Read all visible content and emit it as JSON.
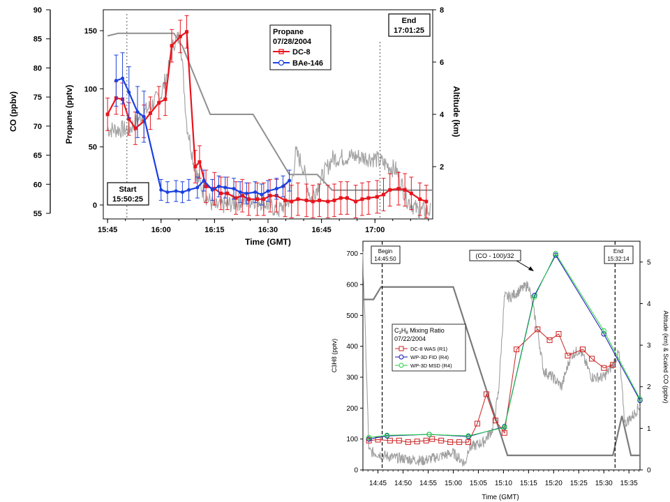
{
  "chart_data": [
    {
      "type": "line",
      "title": "Propane",
      "subtitle": "07/28/2004",
      "xlabel": "Time (GMT)",
      "ylabel": "Propane (pptv)",
      "y2label": "Altitude (km)",
      "y3label": "CO (ppbv)",
      "x_ticks": [
        "15:45",
        "16:00",
        "16:15",
        "16:30",
        "16:45",
        "17:00"
      ],
      "y_ticks": [
        "0",
        "50",
        "100",
        "150"
      ],
      "y2_ticks": [
        "2",
        "4",
        "6",
        "8"
      ],
      "y3_ticks": [
        "55",
        "60",
        "65",
        "70",
        "75",
        "80",
        "85",
        "90"
      ],
      "xlim": [
        15.73,
        17.27
      ],
      "ylim": [
        -12,
        168
      ],
      "y2lim": [
        0,
        8
      ],
      "y3lim": [
        55,
        90
      ],
      "annotations": {
        "start_title": "Start",
        "start_time": "15:50:25",
        "end_title": "End",
        "end_time": "17:01:25"
      },
      "series": [
        {
          "name": "DC-8",
          "color": "#e8141c",
          "x": [
            15.75,
            15.79,
            15.82,
            15.85,
            15.88,
            15.92,
            15.95,
            15.99,
            16.02,
            16.05,
            16.09,
            16.12,
            16.16,
            16.18,
            16.21,
            16.25,
            16.28,
            16.31,
            16.35,
            16.38,
            16.41,
            16.45,
            16.48,
            16.51,
            16.54,
            16.58,
            16.61,
            16.64,
            16.68,
            16.71,
            16.74,
            16.78,
            16.81,
            16.84,
            16.87,
            16.91,
            16.94,
            16.97,
            17.01,
            17.04,
            17.07,
            17.11,
            17.14,
            17.17,
            17.21,
            17.24
          ],
          "y": [
            78,
            92,
            91,
            74,
            66,
            72,
            79,
            88,
            91,
            137,
            145,
            149,
            33,
            37,
            16,
            14,
            10,
            10,
            6,
            8,
            5,
            5,
            5,
            8,
            8,
            4,
            3,
            5,
            4,
            3,
            4,
            3,
            4,
            6,
            6,
            3,
            5,
            6,
            7,
            9,
            13,
            14,
            13,
            10,
            5,
            3
          ]
        },
        {
          "name": "BAe-146",
          "color": "#1a40e0",
          "x": [
            15.79,
            15.82,
            15.85,
            15.89,
            15.92,
            16.0,
            16.03,
            16.07,
            16.1,
            16.13,
            16.17,
            16.2,
            16.24,
            16.27,
            16.3,
            16.34,
            16.37,
            16.4,
            16.44,
            16.47,
            16.5,
            16.54,
            16.57,
            16.6
          ],
          "y": [
            107,
            109,
            97,
            80,
            76,
            13,
            11,
            12,
            11,
            13,
            15,
            21,
            13,
            16,
            15,
            14,
            11,
            10,
            11,
            9,
            12,
            14,
            16,
            21
          ]
        }
      ]
    },
    {
      "type": "line",
      "title": "C3H8 Mixing Ratio",
      "subtitle": "07/22/2004",
      "xlabel": "Time (GMT)",
      "ylabel": "C3H8 (pptv)",
      "y2label": "Altitude (km) & Scaled CO (ppbv)",
      "x_ticks": [
        "14:45",
        "14:50",
        "14:55",
        "15:00",
        "15:05",
        "15:10",
        "15:15",
        "15:20",
        "15:25",
        "15:30",
        "15:35"
      ],
      "y_ticks": [
        "0",
        "100",
        "200",
        "300",
        "400",
        "500",
        "600",
        "700"
      ],
      "y2_ticks": [
        "0",
        "1",
        "2",
        "3",
        "4",
        "5"
      ],
      "xlim": [
        14.7,
        15.62
      ],
      "ylim": [
        0,
        740
      ],
      "y2lim": [
        0,
        5.5
      ],
      "annotations": {
        "begin_title": "Begin",
        "begin_time": "14:45:50",
        "end_title": "End",
        "end_time": "15:32:14",
        "co_label": "(CO - 100)/32"
      },
      "series": [
        {
          "name": "DC-8 WAS (R1)",
          "color": "#cc2020",
          "x": [
            14.72,
            14.75,
            14.79,
            14.82,
            14.85,
            14.88,
            14.91,
            14.93,
            14.96,
            14.99,
            15.02,
            15.05,
            15.08,
            15.11,
            15.14,
            15.17,
            15.21,
            15.28,
            15.32,
            15.35,
            15.38,
            15.43,
            15.46,
            15.5,
            15.53
          ],
          "y": [
            95,
            98,
            95,
            95,
            90,
            92,
            95,
            100,
            95,
            90,
            90,
            90,
            150,
            245,
            160,
            120,
            390,
            455,
            420,
            440,
            370,
            390,
            360,
            330,
            340
          ]
        },
        {
          "name": "WP-3D FID (R4)",
          "color": "#1010b0",
          "x": [
            14.72,
            14.78,
            14.92,
            15.05,
            15.17,
            15.27,
            15.34,
            15.5,
            15.62
          ],
          "y": [
            100,
            110,
            115,
            108,
            140,
            565,
            695,
            440,
            225
          ]
        },
        {
          "name": "WP-3D MSD (R4)",
          "color": "#20d040",
          "x": [
            14.72,
            14.78,
            14.92,
            15.05,
            15.17,
            15.27,
            15.34,
            15.5,
            15.62
          ],
          "y": [
            105,
            112,
            115,
            110,
            138,
            560,
            700,
            450,
            230
          ]
        }
      ]
    }
  ]
}
